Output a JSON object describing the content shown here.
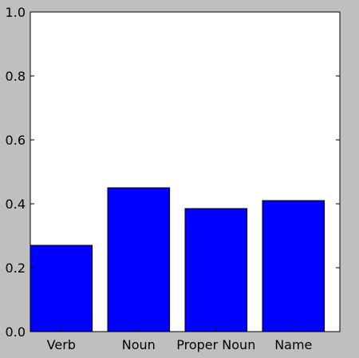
{
  "chart_data": {
    "type": "bar",
    "categories": [
      "Verb",
      "Noun",
      "Proper Noun",
      "Name"
    ],
    "values": [
      0.27,
      0.45,
      0.385,
      0.41
    ],
    "title": "",
    "xlabel": "",
    "ylabel": "",
    "ylim": [
      0.0,
      1.0
    ],
    "yticks": [
      "0.0",
      "0.2",
      "0.4",
      "0.6",
      "0.8",
      "1.0"
    ],
    "bar_color": "#0000ff",
    "grid": false,
    "legend": "none"
  }
}
